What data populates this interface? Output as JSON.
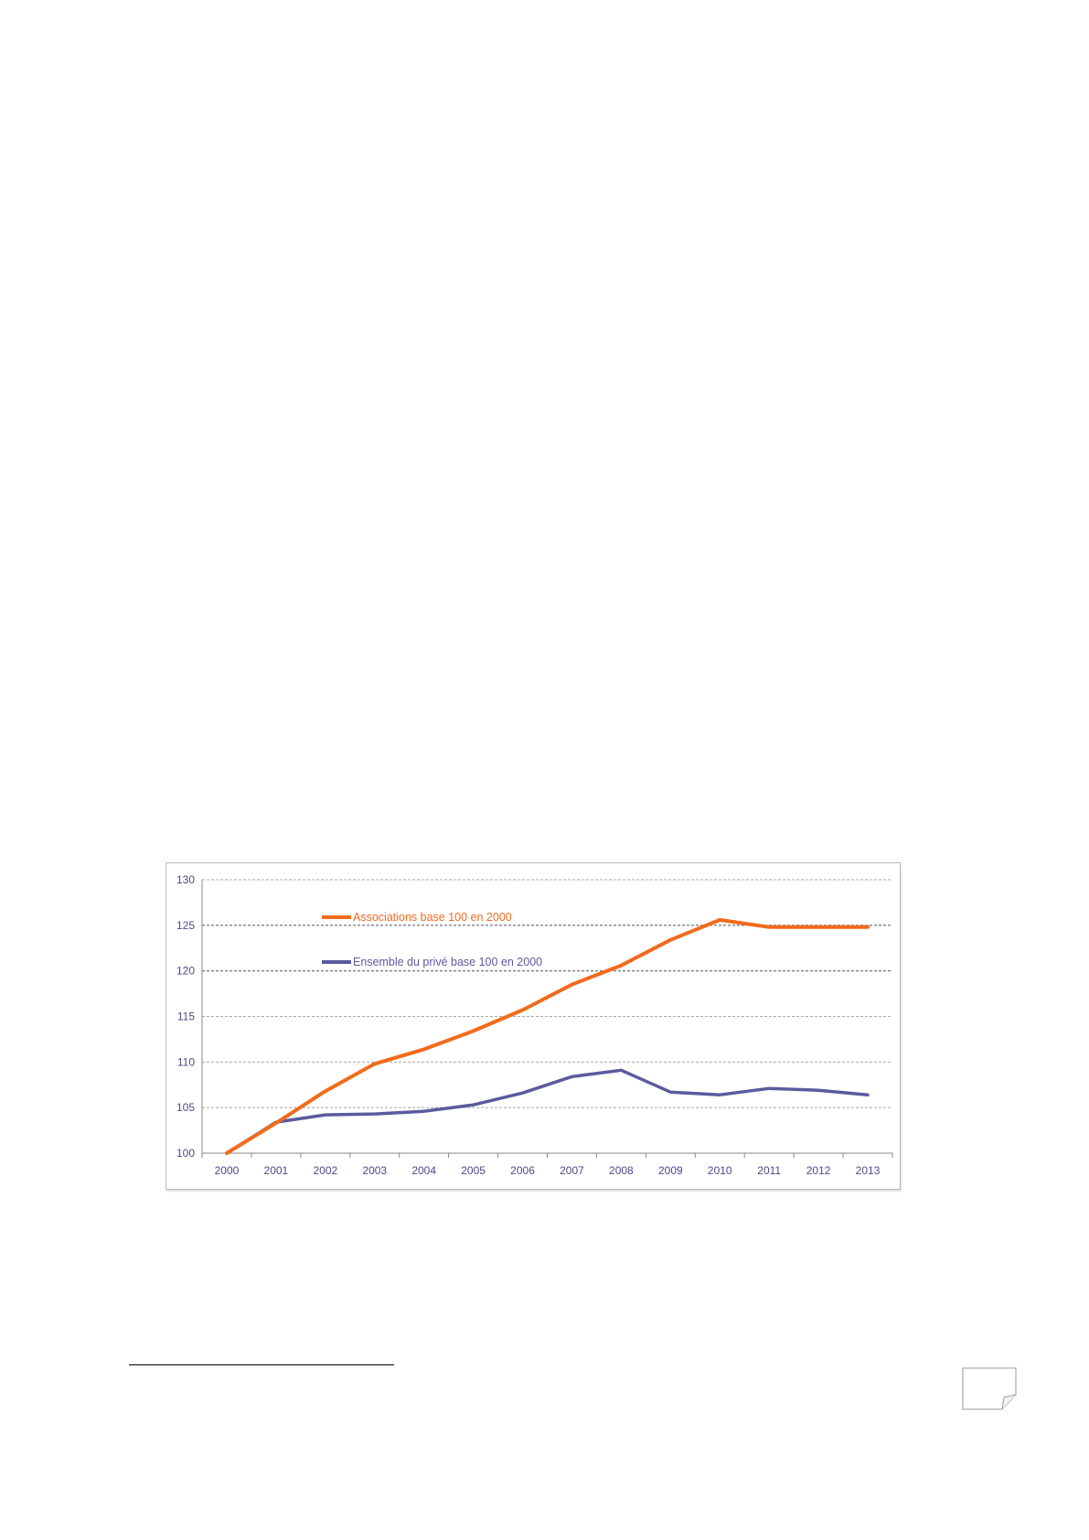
{
  "chart_data": {
    "type": "line",
    "x": [
      "2000",
      "2001",
      "2002",
      "2003",
      "2004",
      "2005",
      "2006",
      "2007",
      "2008",
      "2009",
      "2010",
      "2011",
      "2012",
      "2013"
    ],
    "ylim": [
      100,
      130
    ],
    "yticks": [
      100,
      105,
      110,
      115,
      120,
      125,
      130
    ],
    "grid": true,
    "legend_position": "top-left",
    "series": [
      {
        "name": "Associations base 100 en 2000",
        "color": "#f26a1b",
        "values": [
          100,
          103.3,
          106.8,
          109.8,
          111.4,
          113.4,
          115.7,
          118.5,
          120.6,
          123.4,
          125.6,
          124.8,
          124.8,
          124.8
        ]
      },
      {
        "name": "Ensemble du privé base 100 en 2000",
        "color": "#5b5a9e",
        "values": [
          100,
          103.4,
          104.2,
          104.3,
          104.6,
          105.3,
          106.6,
          108.4,
          109.1,
          106.7,
          106.4,
          107.1,
          106.9,
          106.4
        ]
      }
    ]
  }
}
